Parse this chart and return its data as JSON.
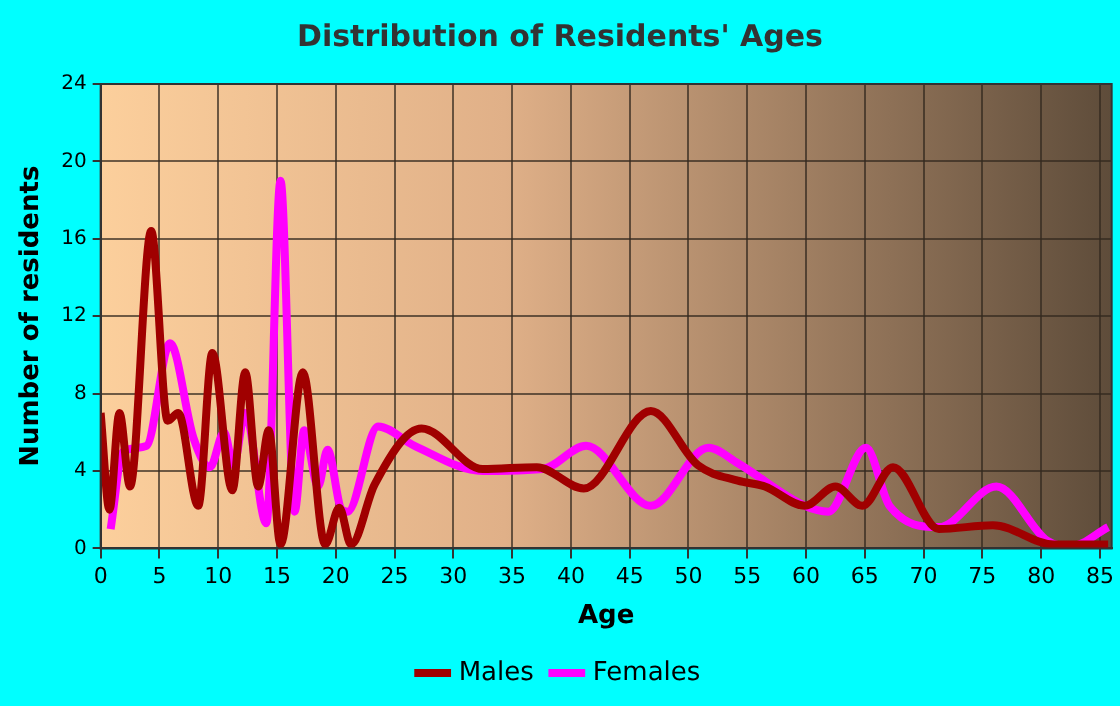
{
  "chart_data": {
    "type": "line",
    "title": "Distribution of Residents' Ages",
    "xlabel": "Age",
    "ylabel": "Number of residents",
    "xlim": [
      0,
      86
    ],
    "xticks": [
      0,
      5,
      10,
      15,
      20,
      25,
      30,
      35,
      40,
      45,
      50,
      55,
      60,
      65,
      70,
      75,
      80,
      85
    ],
    "ylim": [
      0,
      24
    ],
    "yticks": [
      0,
      4,
      8,
      12,
      16,
      20,
      24
    ],
    "grid": true,
    "legend": "bottom",
    "marker": "none",
    "series": [
      {
        "name": "Males",
        "color": "#a00000",
        "x": [
          0,
          0.75,
          1.6,
          2.5,
          4.3,
          5.7,
          6.6,
          8.3,
          9.5,
          11.2,
          12.3,
          13.4,
          14.3,
          15.3,
          17.2,
          19.1,
          20.3,
          21.3,
          23.3,
          27.3,
          32.5,
          37.1,
          41.1,
          46.8,
          50.8,
          54.2,
          56.5,
          59.9,
          62.5,
          64.8,
          67.4,
          71.3,
          75.9,
          81.1,
          85.7
        ],
        "values": [
          7,
          2,
          7,
          3.2,
          16.4,
          6.6,
          7,
          2.2,
          10.1,
          3,
          9.1,
          3.2,
          6.1,
          0.2,
          9.1,
          0.2,
          2.1,
          0.2,
          3.3,
          6.2,
          4.1,
          4.2,
          3.1,
          7.1,
          4.3,
          3.5,
          3.2,
          2.2,
          3.2,
          2.2,
          4.2,
          1,
          1.2,
          0.2,
          0.2
        ]
      },
      {
        "name": "Females",
        "color": "#ff00ff",
        "x": [
          0.85,
          1.9,
          3.9,
          5.9,
          7.9,
          9.3,
          10.5,
          11.3,
          12.3,
          14.1,
          15.3,
          16.5,
          17.3,
          18.5,
          19.3,
          20.5,
          21,
          23.6,
          26.7,
          32.5,
          37.6,
          41.3,
          46.8,
          51.7,
          54.2,
          59.9,
          61.9,
          65.1,
          67.1,
          71.3,
          76.2,
          80.5,
          82.5,
          85.7
        ],
        "values": [
          1,
          5,
          5.3,
          10.6,
          5.7,
          4.2,
          6,
          4.3,
          7,
          1.3,
          19,
          1.9,
          6.1,
          3.2,
          5.1,
          2,
          1.9,
          6.3,
          5.3,
          4,
          4.1,
          5.3,
          2.2,
          5.2,
          4.4,
          2.2,
          1.9,
          5.2,
          2.2,
          1.1,
          3.2,
          0.4,
          0.1,
          1.1
        ]
      }
    ]
  }
}
